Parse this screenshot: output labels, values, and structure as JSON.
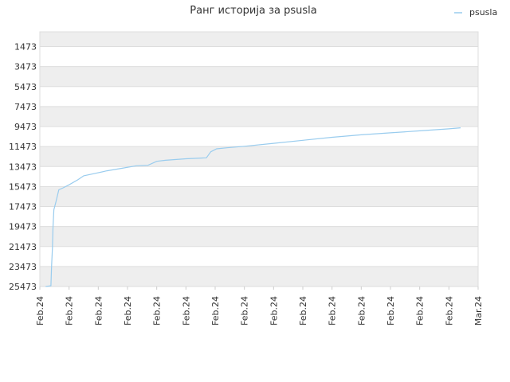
{
  "chart_data": {
    "type": "line",
    "title": "Ранг историја за psusla",
    "xlabel": "",
    "ylabel": "",
    "y_reversed": true,
    "ylim": [
      25473,
      0
    ],
    "y_ticks": [
      1473,
      3473,
      5473,
      7473,
      9473,
      11473,
      13473,
      15473,
      17473,
      19473,
      21473,
      23473,
      25473
    ],
    "x_tick_labels": [
      "Feb.24",
      "Feb.24",
      "Feb.24",
      "Feb.24",
      "Feb.24",
      "Feb.24",
      "Feb.24",
      "Feb.24",
      "Feb.24",
      "Feb.24",
      "Feb.24",
      "Feb.24",
      "Feb.24",
      "Feb.24",
      "Feb.24",
      "Mar.24"
    ],
    "grid": true,
    "band_colors": [
      "#eeeeee",
      "#ffffff"
    ],
    "legend": {
      "position": "top-right"
    },
    "series": [
      {
        "name": "psusla",
        "color": "#99ccee",
        "points": [
          [
            0.2,
            25473
          ],
          [
            0.38,
            25400
          ],
          [
            0.4,
            23473
          ],
          [
            0.43,
            21600
          ],
          [
            0.45,
            19600
          ],
          [
            0.48,
            17800
          ],
          [
            0.55,
            17000
          ],
          [
            0.65,
            15800
          ],
          [
            0.8,
            15600
          ],
          [
            1.0,
            15300
          ],
          [
            1.3,
            14800
          ],
          [
            1.5,
            14400
          ],
          [
            1.9,
            14150
          ],
          [
            2.3,
            13900
          ],
          [
            2.8,
            13650
          ],
          [
            3.3,
            13400
          ],
          [
            3.7,
            13350
          ],
          [
            4.0,
            12950
          ],
          [
            4.3,
            12850
          ],
          [
            5.0,
            12700
          ],
          [
            5.7,
            12600
          ],
          [
            5.85,
            12000
          ],
          [
            6.05,
            11700
          ],
          [
            6.4,
            11600
          ],
          [
            7.0,
            11450
          ],
          [
            8.0,
            11150
          ],
          [
            9.0,
            10850
          ],
          [
            10.0,
            10550
          ],
          [
            11.0,
            10300
          ],
          [
            12.0,
            10100
          ],
          [
            13.0,
            9900
          ],
          [
            14.0,
            9700
          ],
          [
            14.4,
            9600
          ]
        ]
      }
    ]
  }
}
